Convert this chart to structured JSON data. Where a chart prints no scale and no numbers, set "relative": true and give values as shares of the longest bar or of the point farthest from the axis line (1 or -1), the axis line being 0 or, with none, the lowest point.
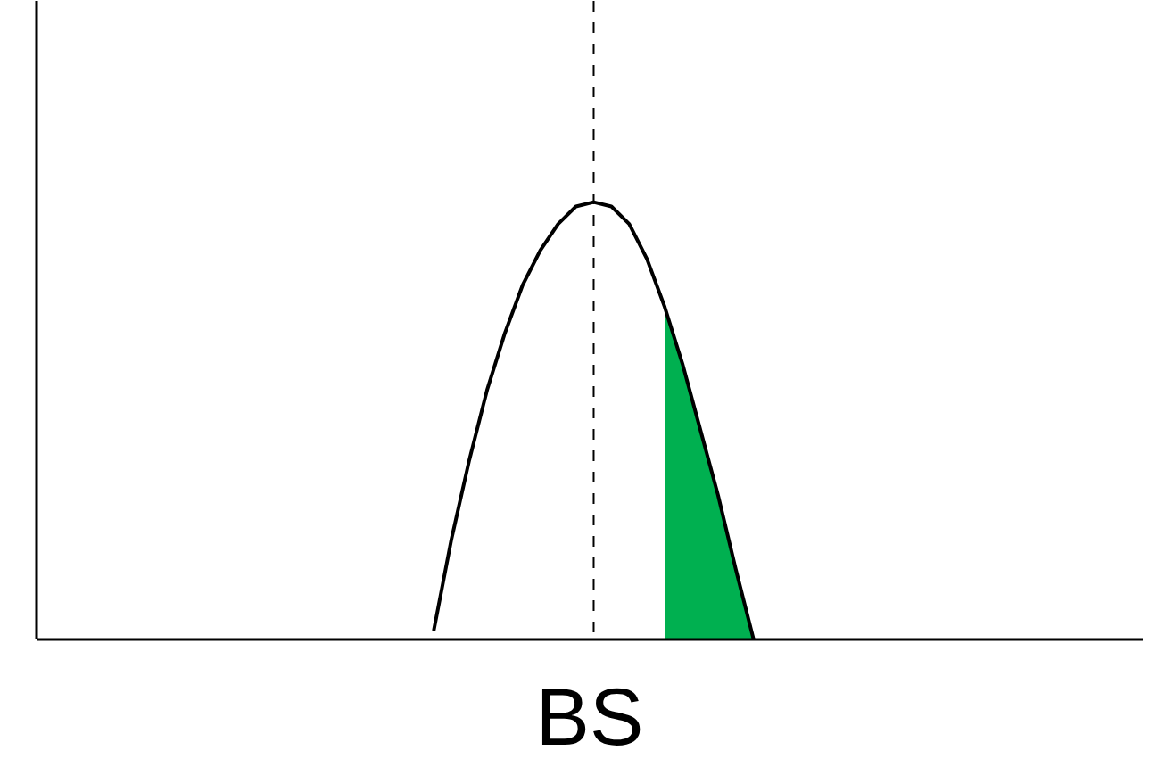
{
  "chart_data": {
    "type": "line",
    "relative": true,
    "xlabel": "BS",
    "categories": [
      null,
      null,
      null,
      null,
      null,
      null,
      null,
      null,
      null,
      null,
      null,
      null,
      null,
      null,
      null,
      null,
      null,
      null,
      null
    ],
    "series": [
      {
        "type": "area",
        "color": "#00b050",
        "values": [
          null,
          null,
          null,
          null,
          null,
          null,
          null,
          null,
          null,
          null,
          null,
          null,
          null,
          0.76,
          0.63,
          0.48,
          0.33,
          0.16,
          0
        ]
      },
      {
        "color": "#000000",
        "values": [
          0.02,
          0.23,
          0.41,
          0.57,
          0.7,
          0.81,
          0.89,
          0.95,
          0.99,
          1,
          0.99,
          0.95,
          0.87,
          0.76,
          0.63,
          0.48,
          0.33,
          0.16,
          0
        ]
      }
    ]
  }
}
